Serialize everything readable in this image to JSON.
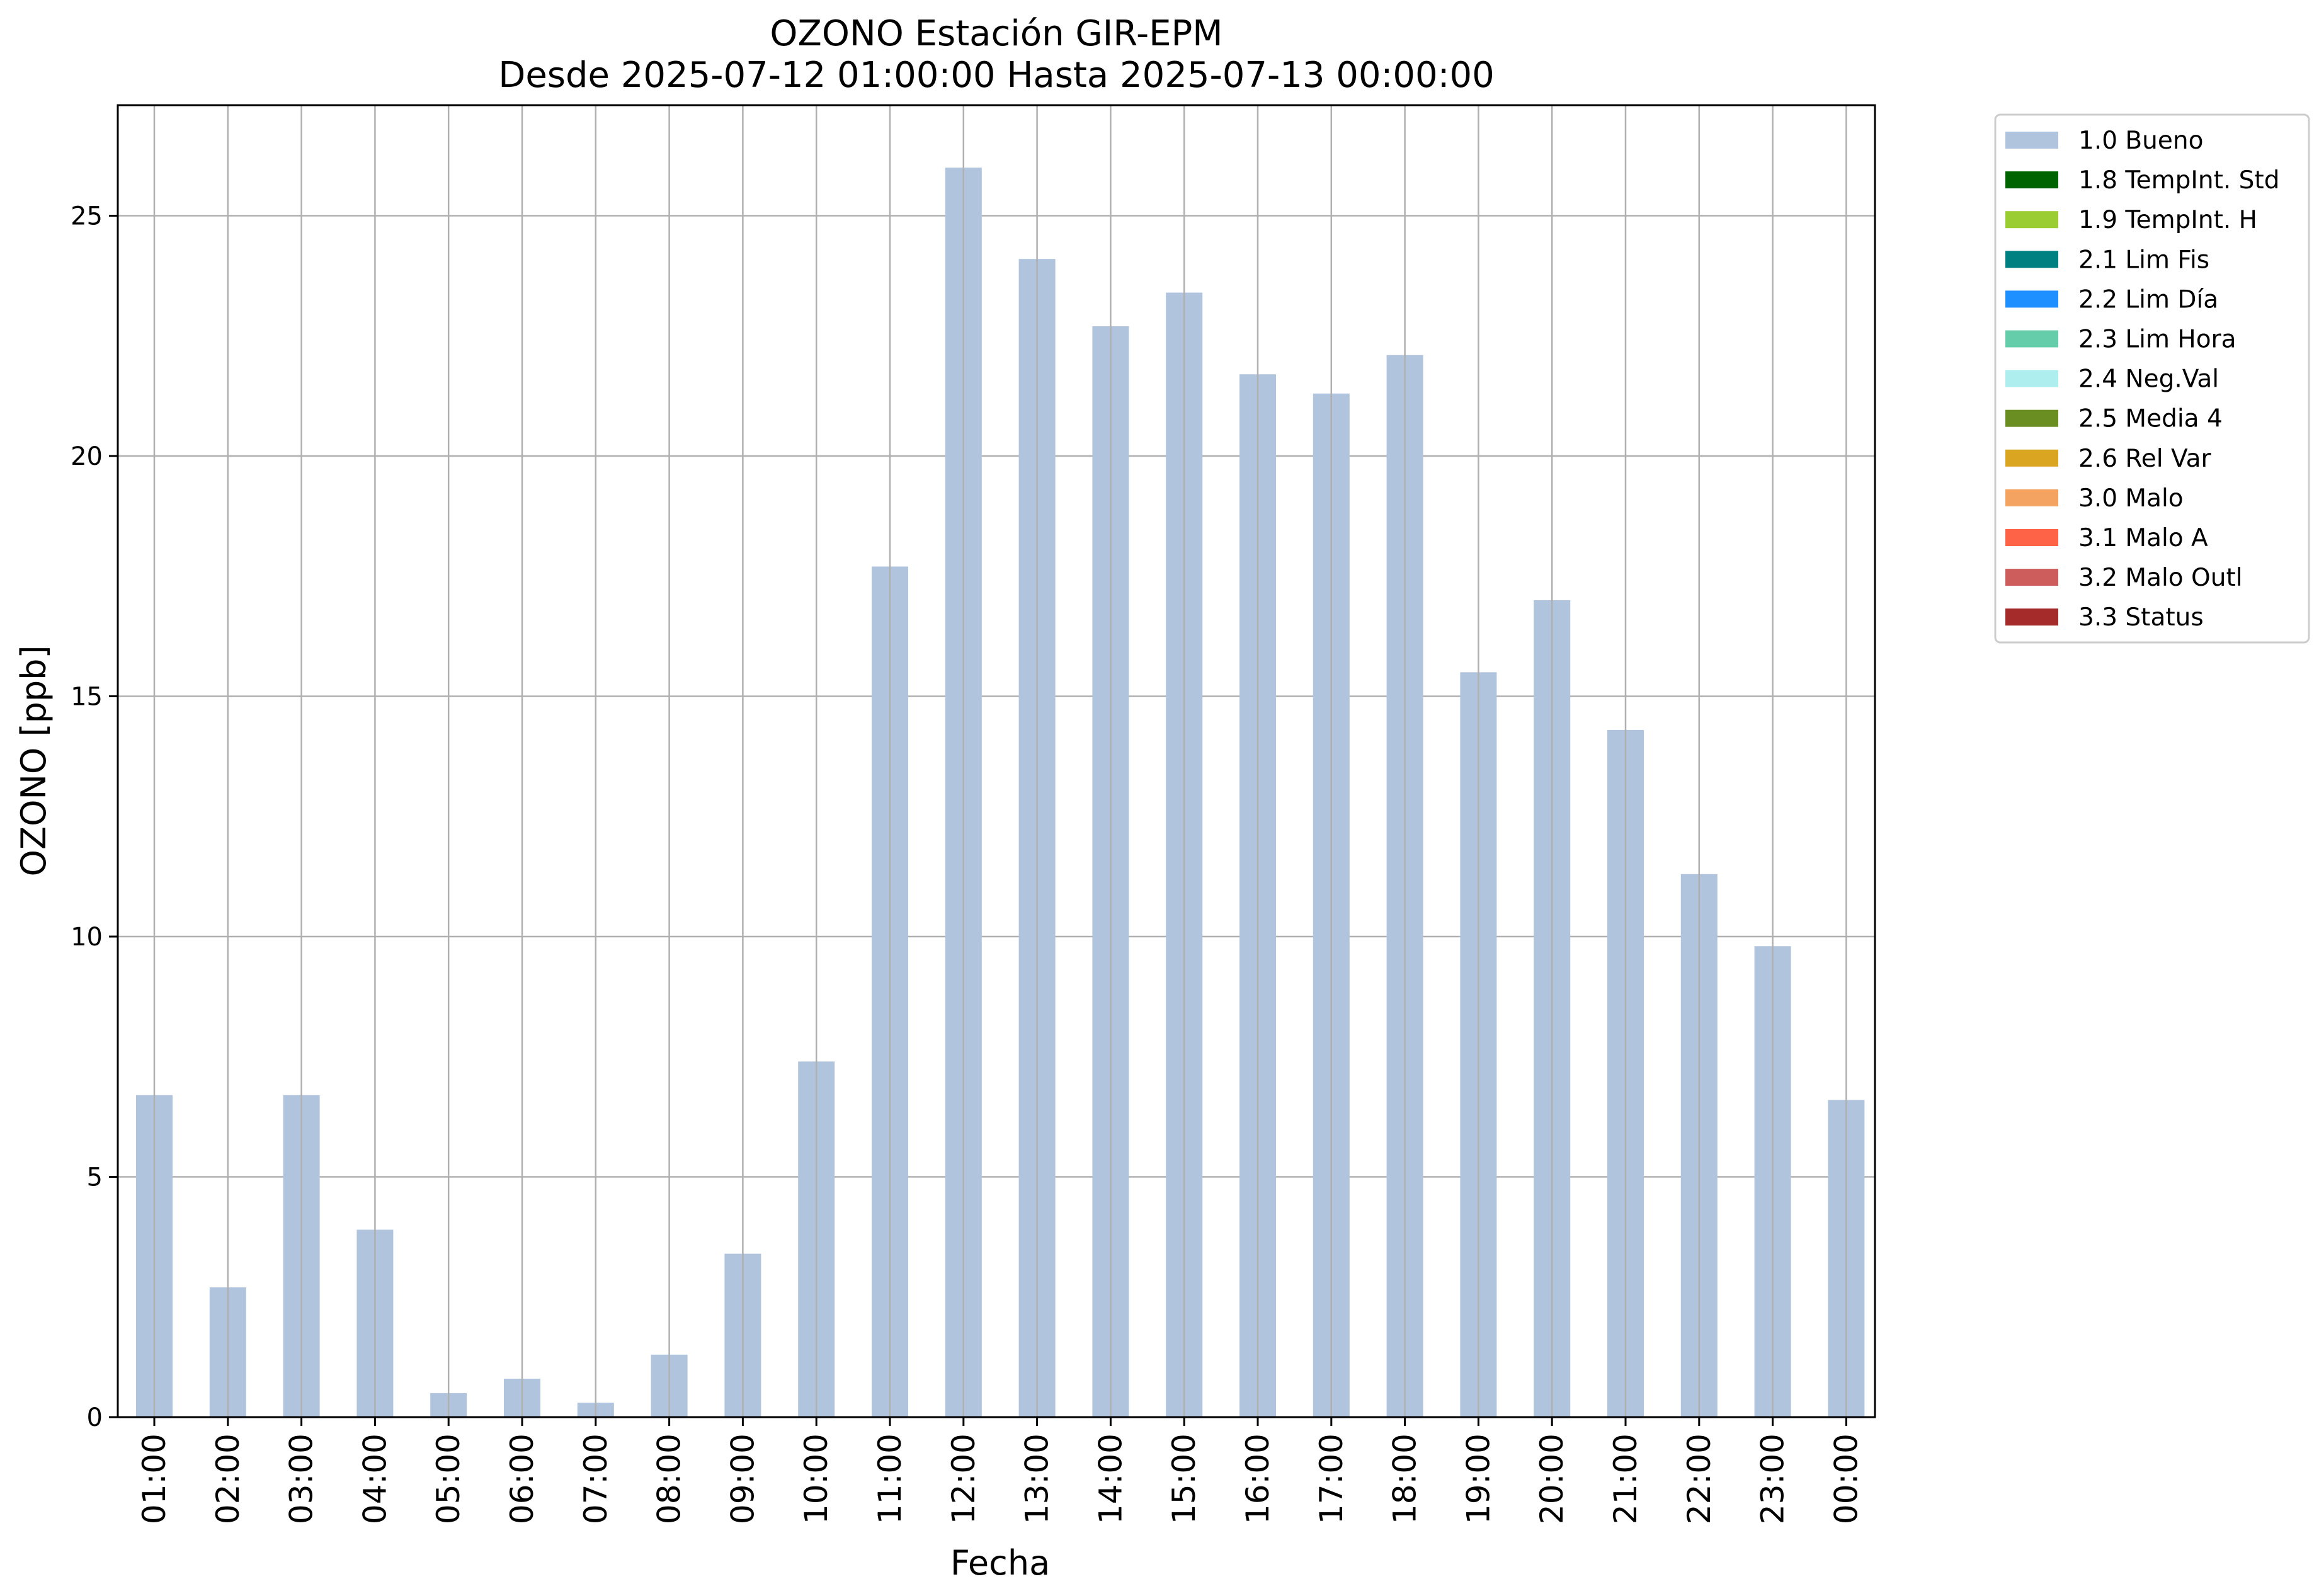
{
  "chart_data": {
    "type": "bar",
    "title": "OZONO Estación GIR-EPM",
    "subtitle": "Desde 2025-07-12 01:00:00 Hasta 2025-07-13 00:00:00",
    "xlabel": "Fecha",
    "ylabel": "OZONO [ppb]",
    "ylim": [
      0,
      27.3
    ],
    "yticks": [
      0,
      5,
      10,
      15,
      20,
      25
    ],
    "grid": true,
    "legend_position": "outside top-right",
    "categories": [
      "01:00",
      "02:00",
      "03:00",
      "04:00",
      "05:00",
      "06:00",
      "07:00",
      "08:00",
      "09:00",
      "10:00",
      "11:00",
      "12:00",
      "13:00",
      "14:00",
      "15:00",
      "16:00",
      "17:00",
      "18:00",
      "19:00",
      "20:00",
      "21:00",
      "22:00",
      "23:00",
      "00:00"
    ],
    "series": [
      {
        "name": "1.0 Bueno",
        "color": "#b0c4de",
        "values": [
          6.7,
          2.7,
          6.7,
          3.9,
          0.5,
          0.8,
          0.3,
          1.3,
          3.4,
          7.4,
          17.7,
          26.0,
          24.1,
          22.7,
          23.4,
          21.7,
          21.3,
          22.1,
          15.5,
          17.0,
          14.3,
          11.3,
          9.8,
          6.6
        ]
      }
    ],
    "legend": [
      {
        "label": "1.0 Bueno",
        "color": "#b0c4de"
      },
      {
        "label": "1.8 TempInt. Std",
        "color": "#006400"
      },
      {
        "label": "1.9 TempInt. H",
        "color": "#9acd32"
      },
      {
        "label": "2.1 Lim Fis",
        "color": "#008080"
      },
      {
        "label": "2.2 Lim Día",
        "color": "#1e90ff"
      },
      {
        "label": "2.3 Lim Hora",
        "color": "#66cdaa"
      },
      {
        "label": "2.4 Neg.Val",
        "color": "#afeeee"
      },
      {
        "label": "2.5 Media 4",
        "color": "#6b8e23"
      },
      {
        "label": "2.6 Rel Var",
        "color": "#daa520"
      },
      {
        "label": "3.0 Malo",
        "color": "#f4a460"
      },
      {
        "label": "3.1 Malo A",
        "color": "#ff6347"
      },
      {
        "label": "3.2 Malo Outl",
        "color": "#cd5c5c"
      },
      {
        "label": "3.3 Status",
        "color": "#a52a2a"
      }
    ]
  }
}
